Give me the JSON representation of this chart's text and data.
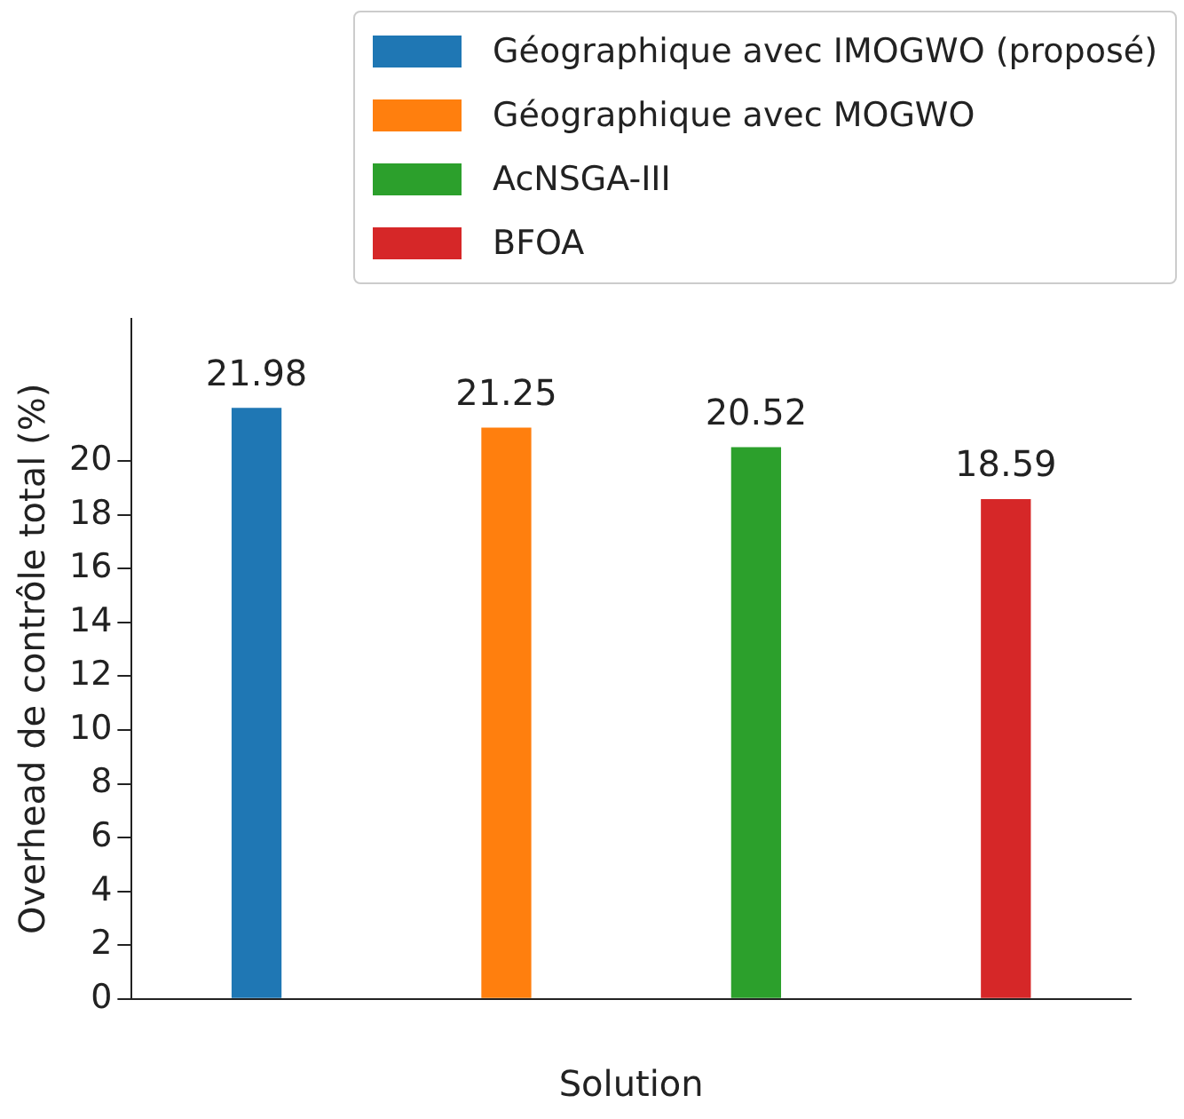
{
  "chart_data": {
    "type": "bar",
    "xlabel": "Solution",
    "ylabel": "Overhead de contrôle total (%)",
    "categories": [
      null,
      null,
      null,
      null
    ],
    "series": [
      {
        "name": "Géographique avec IMOGWO (proposé)",
        "color": "#1f77b4",
        "values": [
          21.98,
          null,
          null,
          null
        ]
      },
      {
        "name": "Géographique avec MOGWO",
        "color": "#ff7f0e",
        "values": [
          null,
          21.25,
          null,
          null
        ]
      },
      {
        "name": "AcNSGA-III",
        "color": "#2ca02c",
        "values": [
          null,
          null,
          20.52,
          null
        ]
      },
      {
        "name": "BFOA",
        "color": "#d62728",
        "values": [
          null,
          null,
          null,
          18.59
        ]
      }
    ],
    "ylim": [
      0,
      25.3
    ],
    "yticks": [
      0,
      2,
      4,
      6,
      8,
      10,
      12,
      14,
      16,
      18,
      20
    ],
    "data_labels": true,
    "legend": "top right",
    "grid": false
  }
}
